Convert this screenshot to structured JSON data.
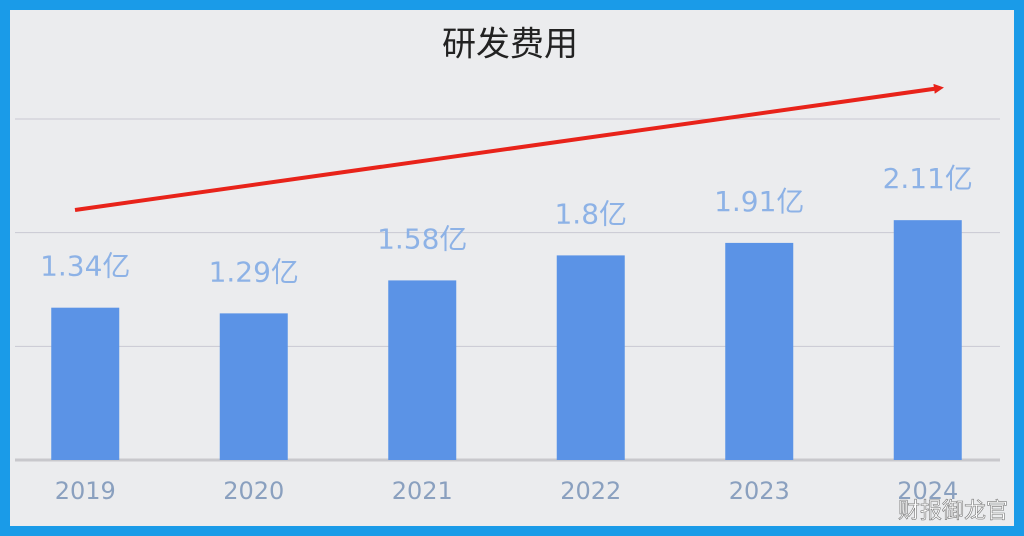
{
  "chart_data": {
    "type": "bar",
    "title": "研发费用",
    "categories": [
      "2019",
      "2020",
      "2021",
      "2022",
      "2023",
      "2024"
    ],
    "values": [
      1.34,
      1.29,
      1.58,
      1.8,
      1.91,
      2.11
    ],
    "value_labels": [
      "1.34亿",
      "1.29亿",
      "1.58亿",
      "1.8亿",
      "1.91亿",
      "2.11亿"
    ],
    "color": "#5b93e6",
    "ylim": [
      0,
      3
    ],
    "yticks": [
      0,
      1,
      2,
      3
    ],
    "grid": true
  },
  "watermark": "财报御龙官"
}
